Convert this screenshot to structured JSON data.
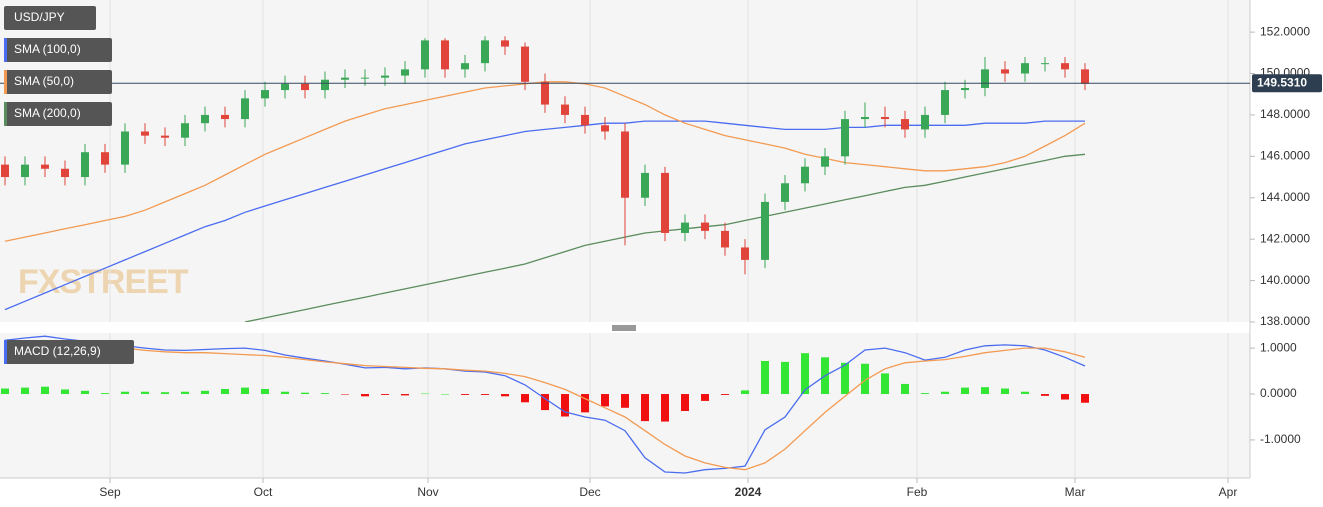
{
  "chart_data": [
    {
      "type": "candlestick",
      "title": "USD/JPY",
      "open": [
        145.6,
        145.0,
        145.6,
        145.4,
        145.0,
        146.2,
        145.6,
        147.2,
        147.0,
        146.9,
        147.6,
        148.0,
        147.8,
        148.8,
        149.2,
        149.5,
        149.2,
        149.7,
        149.8,
        149.8,
        149.9,
        150.2,
        151.6,
        150.2,
        150.5,
        151.6,
        151.3,
        149.6,
        148.5,
        148.0,
        147.5,
        147.2,
        144.0,
        145.2,
        142.3,
        142.8,
        142.4,
        141.6,
        141.0,
        143.8,
        144.7,
        145.5,
        146.0,
        147.8,
        147.9,
        147.8,
        147.3,
        148.0,
        149.2,
        149.3,
        150.2,
        150.0,
        150.5,
        150.5,
        150.2
      ],
      "high": [
        146.0,
        146.0,
        146.0,
        145.8,
        146.6,
        146.6,
        147.6,
        147.6,
        147.4,
        148.0,
        148.4,
        148.4,
        149.2,
        149.6,
        149.9,
        149.9,
        150.1,
        150.2,
        150.2,
        150.3,
        150.6,
        151.7,
        151.7,
        150.9,
        151.8,
        151.8,
        151.5,
        150.0,
        148.9,
        148.4,
        147.9,
        147.6,
        145.6,
        145.5,
        143.2,
        143.2,
        142.8,
        142.0,
        144.2,
        145.1,
        145.9,
        146.4,
        148.2,
        148.6,
        148.4,
        148.2,
        148.4,
        149.6,
        149.7,
        150.8,
        150.6,
        150.8,
        150.8,
        150.8,
        150.5
      ],
      "low": [
        144.6,
        144.6,
        145.0,
        144.6,
        144.6,
        145.2,
        145.2,
        146.6,
        146.5,
        146.5,
        147.2,
        147.4,
        147.4,
        148.4,
        148.8,
        148.8,
        148.8,
        149.3,
        149.4,
        149.4,
        149.5,
        149.8,
        149.8,
        149.8,
        150.1,
        150.9,
        149.2,
        148.1,
        147.6,
        147.1,
        146.8,
        141.7,
        143.6,
        141.9,
        141.9,
        142.0,
        141.2,
        140.3,
        140.6,
        143.4,
        144.3,
        145.1,
        145.6,
        147.4,
        147.4,
        146.9,
        146.9,
        147.6,
        148.8,
        148.9,
        149.6,
        149.6,
        150.1,
        149.8,
        149.2
      ],
      "close": [
        145.0,
        145.6,
        145.4,
        145.0,
        146.2,
        145.6,
        147.2,
        147.0,
        146.9,
        147.6,
        148.0,
        147.8,
        148.8,
        149.2,
        149.5,
        149.2,
        149.7,
        149.8,
        149.8,
        149.9,
        150.2,
        151.6,
        150.2,
        150.5,
        151.6,
        151.3,
        149.6,
        148.5,
        148.0,
        147.5,
        147.2,
        144.0,
        145.2,
        142.3,
        142.8,
        142.4,
        141.6,
        141.0,
        143.8,
        144.7,
        145.5,
        146.0,
        147.8,
        147.9,
        147.8,
        147.3,
        148.0,
        149.2,
        149.3,
        150.2,
        150.0,
        150.5,
        150.5,
        150.2,
        149.5
      ],
      "up_color": "#3aa757",
      "down_color": "#e0443a",
      "series": [
        {
          "name": "SMA (100,0)",
          "color": "#4a6cf0",
          "values": [
            138.6,
            139.0,
            139.4,
            139.8,
            140.2,
            140.6,
            141.0,
            141.4,
            141.8,
            142.2,
            142.6,
            142.9,
            143.3,
            143.6,
            143.9,
            144.2,
            144.5,
            144.8,
            145.1,
            145.4,
            145.7,
            146.0,
            146.3,
            146.6,
            146.8,
            147.0,
            147.2,
            147.3,
            147.4,
            147.5,
            147.6,
            147.6,
            147.7,
            147.7,
            147.7,
            147.7,
            147.6,
            147.5,
            147.4,
            147.3,
            147.3,
            147.3,
            147.4,
            147.4,
            147.5,
            147.5,
            147.5,
            147.5,
            147.5,
            147.6,
            147.6,
            147.6,
            147.7,
            147.7,
            147.7
          ]
        },
        {
          "name": "SMA (50,0)",
          "color": "#f39a52",
          "values": [
            141.9,
            142.1,
            142.3,
            142.5,
            142.7,
            142.9,
            143.1,
            143.4,
            143.8,
            144.2,
            144.6,
            145.1,
            145.6,
            146.1,
            146.5,
            146.9,
            147.3,
            147.7,
            148.0,
            148.3,
            148.5,
            148.7,
            148.9,
            149.1,
            149.3,
            149.4,
            149.5,
            149.6,
            149.6,
            149.5,
            149.3,
            148.9,
            148.5,
            148.0,
            147.6,
            147.3,
            147.0,
            146.8,
            146.6,
            146.4,
            146.1,
            145.9,
            145.7,
            145.6,
            145.5,
            145.4,
            145.3,
            145.3,
            145.4,
            145.5,
            145.7,
            146.0,
            146.5,
            147.0,
            147.6
          ]
        },
        {
          "name": "SMA (200,0)",
          "color": "#5b8c5e",
          "values": [
            null,
            null,
            null,
            null,
            null,
            null,
            null,
            null,
            null,
            null,
            null,
            null,
            138.0,
            138.2,
            138.4,
            138.6,
            138.8,
            139.0,
            139.2,
            139.4,
            139.6,
            139.8,
            140.0,
            140.2,
            140.4,
            140.6,
            140.8,
            141.1,
            141.4,
            141.7,
            141.9,
            142.1,
            142.3,
            142.4,
            142.5,
            142.6,
            142.7,
            142.9,
            143.1,
            143.3,
            143.5,
            143.7,
            143.9,
            144.1,
            144.3,
            144.5,
            144.6,
            144.8,
            145.0,
            145.2,
            145.4,
            145.6,
            145.8,
            146.0,
            146.1
          ]
        }
      ],
      "last_price": {
        "value": 149.531,
        "label": "149.5310"
      },
      "ylim": [
        138,
        153.55
      ],
      "yticks": [
        {
          "value": 152,
          "label": "152.0000"
        },
        {
          "value": 150,
          "label": "150.0000"
        },
        {
          "value": 148,
          "label": "148.0000"
        },
        {
          "value": 146,
          "label": "146.0000"
        },
        {
          "value": 144,
          "label": "144.0000"
        },
        {
          "value": 142,
          "label": "142.0000"
        },
        {
          "value": 140,
          "label": "140.0000"
        },
        {
          "value": 138,
          "label": "138.0000"
        }
      ],
      "xlim": [
        -0.25,
        62.25
      ],
      "xticks": [
        {
          "value": 5.25,
          "label": "Sep"
        },
        {
          "value": 12.9,
          "label": "Oct"
        },
        {
          "value": 21.15,
          "label": "Nov"
        },
        {
          "value": 29.25,
          "label": "Dec"
        },
        {
          "value": 37.15,
          "label": "2024"
        },
        {
          "value": 45.6,
          "label": "Feb"
        },
        {
          "value": 53.5,
          "label": "Mar"
        },
        {
          "value": 61.15,
          "label": "Apr"
        }
      ],
      "grid": true,
      "watermark": "FXSTREET"
    },
    {
      "type": "macd",
      "title": "MACD (12,26,9)",
      "series": [
        {
          "color": "#4a6cf0",
          "values": [
            1.17,
            1.22,
            1.26,
            1.2,
            1.15,
            1.07,
            1.05,
            1.0,
            0.96,
            0.95,
            0.97,
            0.99,
            1.0,
            0.95,
            0.85,
            0.78,
            0.72,
            0.65,
            0.57,
            0.58,
            0.55,
            0.57,
            0.55,
            0.5,
            0.48,
            0.4,
            0.2,
            -0.1,
            -0.39,
            -0.5,
            -0.57,
            -0.8,
            -1.39,
            -1.7,
            -1.72,
            -1.65,
            -1.62,
            -1.57,
            -0.78,
            -0.5,
            0.09,
            0.4,
            0.63,
            0.96,
            1.0,
            0.9,
            0.74,
            0.8,
            0.96,
            1.05,
            1.07,
            1.05,
            0.96,
            0.8,
            0.61
          ]
        },
        {
          "color": "#f39a52",
          "values": [
            1.05,
            1.08,
            1.1,
            1.1,
            1.08,
            1.05,
            1.0,
            0.95,
            0.92,
            0.9,
            0.9,
            0.88,
            0.86,
            0.84,
            0.8,
            0.75,
            0.7,
            0.66,
            0.62,
            0.6,
            0.58,
            0.56,
            0.55,
            0.52,
            0.5,
            0.45,
            0.38,
            0.25,
            0.1,
            -0.1,
            -0.3,
            -0.5,
            -0.8,
            -1.1,
            -1.35,
            -1.5,
            -1.6,
            -1.65,
            -1.5,
            -1.2,
            -0.8,
            -0.4,
            -0.05,
            0.3,
            0.55,
            0.68,
            0.72,
            0.75,
            0.82,
            0.9,
            0.95,
            1.0,
            1.0,
            0.92,
            0.8
          ]
        }
      ],
      "histogram": {
        "up_color": "#33e633",
        "down_color": "#f01010",
        "values": [
          0.12,
          0.14,
          0.16,
          0.1,
          0.07,
          0.02,
          0.05,
          0.05,
          0.04,
          0.05,
          0.07,
          0.11,
          0.14,
          0.11,
          0.05,
          0.03,
          0.02,
          -0.01,
          -0.05,
          -0.02,
          -0.03,
          0.01,
          0,
          -0.02,
          -0.02,
          -0.05,
          -0.18,
          -0.35,
          -0.49,
          -0.4,
          -0.27,
          -0.3,
          -0.59,
          -0.6,
          -0.37,
          -0.15,
          -0.02,
          0.08,
          0.72,
          0.7,
          0.89,
          0.8,
          0.68,
          0.66,
          0.45,
          0.22,
          0.02,
          0.05,
          0.14,
          0.15,
          0.12,
          0.05,
          -0.04,
          -0.12,
          -0.19
        ]
      },
      "ylim": [
        -1.83,
        1.33
      ],
      "yticks": [
        {
          "value": 1,
          "label": "1.0000"
        },
        {
          "value": 0,
          "label": "0.0000"
        },
        {
          "value": -1,
          "label": "-1.0000"
        }
      ]
    }
  ]
}
